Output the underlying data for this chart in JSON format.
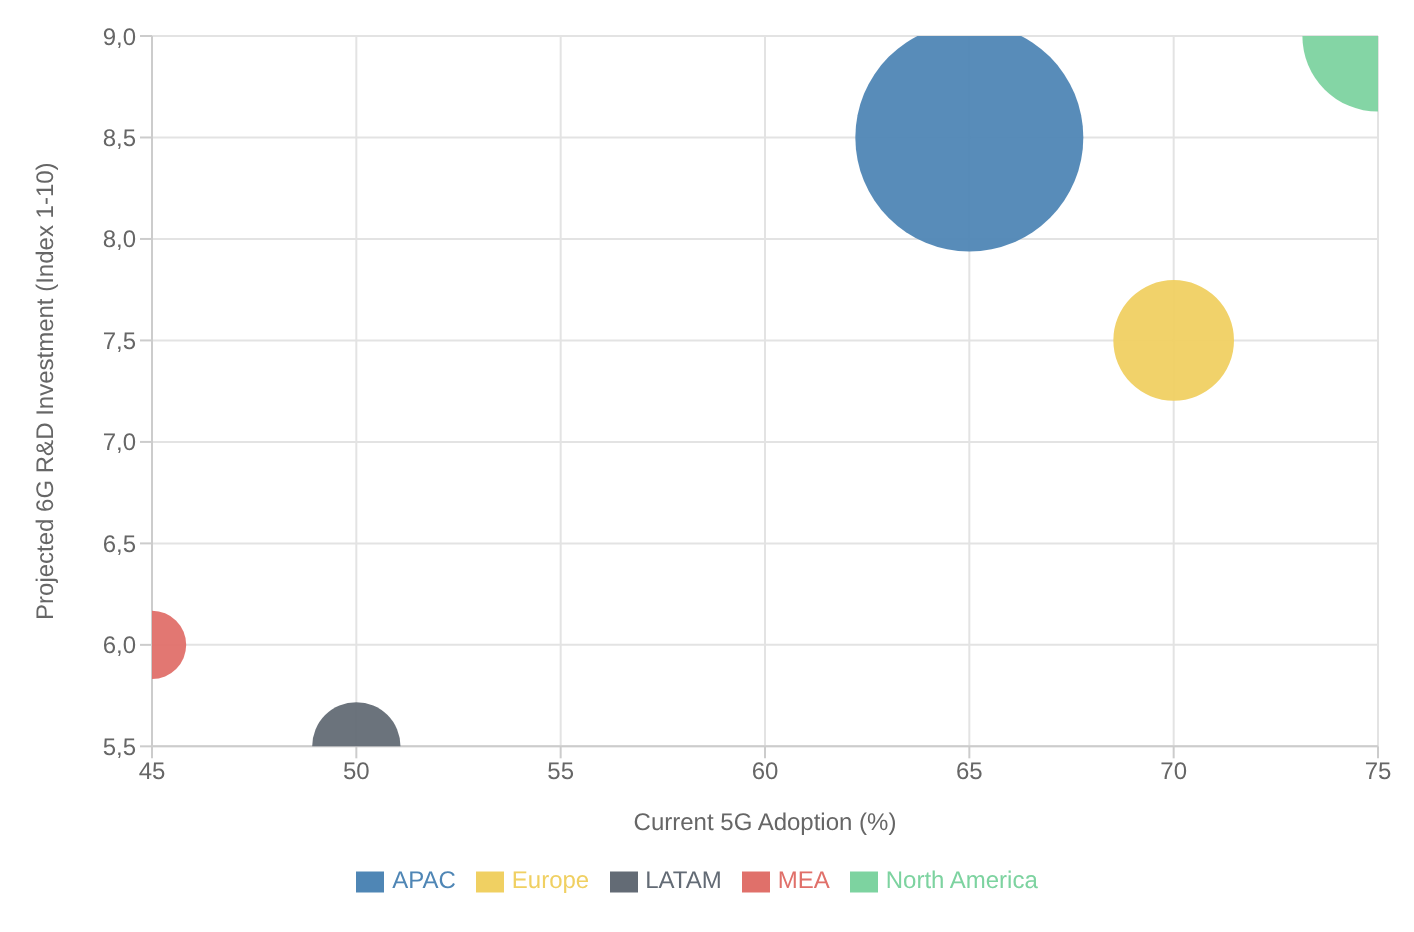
{
  "chart_data": {
    "type": "bubble",
    "xlabel": "Current 5G Adoption (%)",
    "ylabel": "Projected 6G R&D Investment (Index 1-10)",
    "xlim": [
      45,
      75
    ],
    "xticks": [
      45,
      50,
      55,
      60,
      65,
      70,
      75
    ],
    "ylim": [
      5.5,
      9
    ],
    "yticks": [
      {
        "value": 5.5,
        "label": "5,5"
      },
      {
        "value": 6,
        "label": "6,0"
      },
      {
        "value": 6.5,
        "label": "6,5"
      },
      {
        "value": 7,
        "label": "7,0"
      },
      {
        "value": 7.5,
        "label": "7,5"
      },
      {
        "value": 8,
        "label": "8,0"
      },
      {
        "value": 8.5,
        "label": "8,5"
      },
      {
        "value": 9,
        "label": "9,0"
      }
    ],
    "grid": true,
    "legend": "bottom",
    "series": [
      {
        "name": "APAC",
        "color": "#4f86b5",
        "x": [
          65
        ],
        "values": [
          8.5
        ],
        "sizes": [
          1
        ]
      },
      {
        "name": "North America",
        "color": "#7dd3a0",
        "x": [
          75
        ],
        "values": [
          9
        ],
        "sizes": [
          0.44
        ]
      },
      {
        "name": "Europe",
        "color": "#f0d062",
        "x": [
          70
        ],
        "values": [
          7.5
        ],
        "sizes": [
          0.28
        ]
      },
      {
        "name": "MEA",
        "color": "#e0706a",
        "x": [
          45
        ],
        "values": [
          6
        ],
        "sizes": [
          0.09
        ]
      },
      {
        "name": "LATAM",
        "color": "#636b75",
        "x": [
          50
        ],
        "values": [
          5.5
        ],
        "sizes": [
          0.15
        ]
      }
    ]
  }
}
